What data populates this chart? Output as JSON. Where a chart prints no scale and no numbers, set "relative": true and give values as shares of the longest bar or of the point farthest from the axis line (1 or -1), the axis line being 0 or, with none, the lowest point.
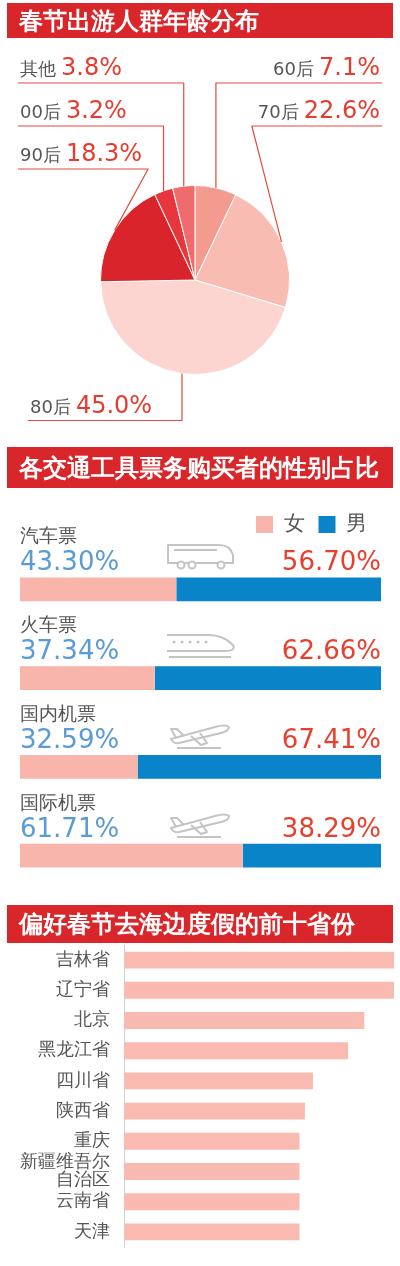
{
  "chart_data": [
    {
      "type": "pie",
      "title": "春节出游人群年龄分布",
      "categories": [
        "60后",
        "70后",
        "80后",
        "90后",
        "00后",
        "其他"
      ],
      "values": [
        7.1,
        22.6,
        45.0,
        18.3,
        3.2,
        3.8
      ],
      "value_labels": [
        "7.1%",
        "22.6%",
        "45.0%",
        "18.3%",
        "3.2%",
        "3.8%"
      ],
      "colors": [
        "#f39b8f",
        "#f8bcb2",
        "#fcd5d0",
        "#d8242a",
        "#e8373c",
        "#ef6b6c"
      ]
    },
    {
      "type": "bar",
      "orientation": "horizontal",
      "stacked": true,
      "title": "各交通工具票务购买者的性别占比",
      "categories": [
        "汽车票",
        "火车票",
        "国内机票",
        "国际机票"
      ],
      "series": [
        {
          "name": "女",
          "color": "#f8b5ab",
          "values": [
            43.3,
            37.34,
            32.59,
            61.71
          ],
          "value_labels": [
            "43.30%",
            "37.34%",
            "32.59%",
            "61.71%"
          ]
        },
        {
          "name": "男",
          "color": "#0a84c8",
          "values": [
            56.7,
            62.66,
            67.41,
            38.29
          ],
          "value_labels": [
            "56.70%",
            "62.66%",
            "67.41%",
            "38.29%"
          ]
        }
      ],
      "xlim": [
        0,
        100
      ],
      "legend": "top right",
      "tick_labels": "y"
    },
    {
      "type": "bar",
      "orientation": "horizontal",
      "relative": true,
      "title": "偏好春节去海边度假的前十省份",
      "categories": [
        "吉林省",
        "辽宁省",
        "北京",
        "黑龙江省",
        "四川省",
        "陕西省",
        "重庆",
        "新疆维吾尔自治区",
        "云南省",
        "天津"
      ],
      "values": [
        1,
        1,
        0.89,
        0.83,
        0.7,
        0.67,
        0.65,
        0.65,
        0.65,
        0.65
      ],
      "color": "#f9bab1"
    }
  ]
}
